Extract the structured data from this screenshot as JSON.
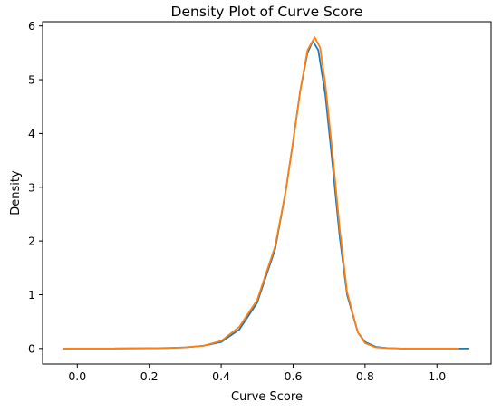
{
  "chart_data": {
    "type": "line",
    "title": "Density Plot of Curve Score",
    "xlabel": "Curve Score",
    "ylabel": "Density",
    "xlim": [
      -0.0965,
      1.1505
    ],
    "ylim": [
      -0.289,
      6.079
    ],
    "grid": false,
    "legend": "none",
    "x_ticks": [
      0.0,
      0.2,
      0.4,
      0.6,
      0.8,
      1.0
    ],
    "x_tick_labels": [
      "0.0",
      "0.2",
      "0.4",
      "0.6",
      "0.8",
      "1.0"
    ],
    "y_ticks": [
      0,
      1,
      2,
      3,
      4,
      5,
      6
    ],
    "y_tick_labels": [
      "0",
      "1",
      "2",
      "3",
      "4",
      "5",
      "6"
    ],
    "series": [
      {
        "color": "#1f77b4",
        "x": [
          -0.04,
          0.1,
          0.2,
          0.25,
          0.3,
          0.35,
          0.4,
          0.45,
          0.5,
          0.55,
          0.58,
          0.6,
          0.62,
          0.64,
          0.655,
          0.67,
          0.69,
          0.71,
          0.73,
          0.75,
          0.78,
          0.8,
          0.83,
          0.86,
          0.9,
          1.0,
          1.09
        ],
        "y": [
          0.0,
          0.0,
          0.005,
          0.01,
          0.02,
          0.05,
          0.12,
          0.35,
          0.85,
          1.85,
          2.95,
          3.85,
          4.8,
          5.5,
          5.72,
          5.55,
          4.7,
          3.4,
          2.05,
          1.0,
          0.3,
          0.12,
          0.03,
          0.01,
          0.0,
          0.0,
          0.0
        ]
      },
      {
        "color": "#ff7f0e",
        "x": [
          -0.04,
          0.1,
          0.2,
          0.25,
          0.3,
          0.35,
          0.4,
          0.45,
          0.5,
          0.55,
          0.58,
          0.6,
          0.62,
          0.64,
          0.66,
          0.675,
          0.69,
          0.71,
          0.73,
          0.75,
          0.78,
          0.8,
          0.83,
          0.86,
          0.9,
          1.0,
          1.06
        ],
        "y": [
          0.0,
          0.0,
          0.005,
          0.01,
          0.02,
          0.05,
          0.14,
          0.4,
          0.9,
          1.9,
          2.95,
          3.85,
          4.8,
          5.55,
          5.79,
          5.6,
          4.9,
          3.6,
          2.2,
          1.05,
          0.3,
          0.1,
          0.02,
          0.01,
          0.0,
          0.0,
          0.0
        ]
      }
    ]
  }
}
